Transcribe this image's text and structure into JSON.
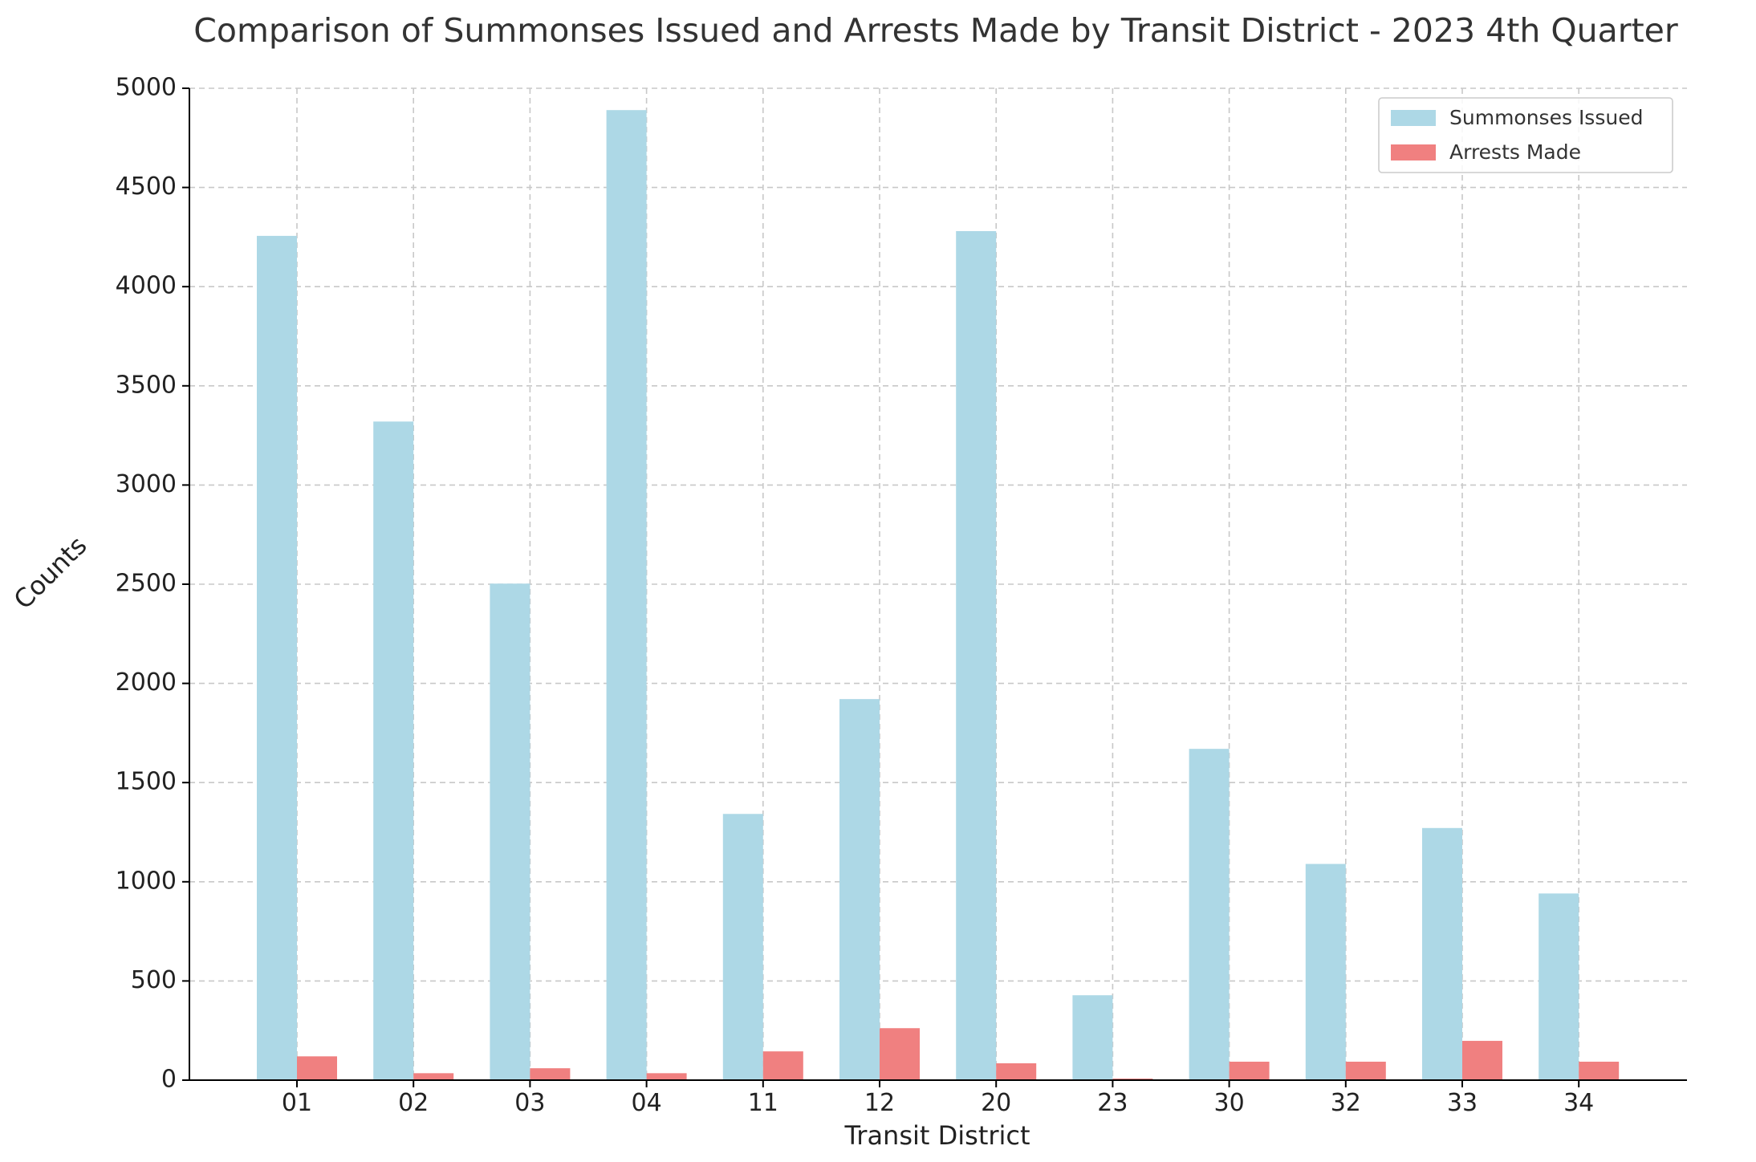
{
  "chart_data": {
    "type": "bar",
    "title": "Comparison of Summonses Issued and Arrests Made by Transit District - 2023 4th Quarter",
    "xlabel": "Transit District",
    "ylabel": "Counts",
    "categories": [
      "01",
      "02",
      "03",
      "04",
      "11",
      "12",
      "20",
      "23",
      "30",
      "32",
      "33",
      "34"
    ],
    "series": [
      {
        "name": "Summonses Issued",
        "color": "#add8e6",
        "values": [
          4256,
          3320,
          2503,
          4890,
          1342,
          1921,
          4280,
          428,
          1670,
          1090,
          1271,
          941
        ]
      },
      {
        "name": "Arrests Made",
        "color": "#f08080",
        "values": [
          120,
          35,
          60,
          35,
          145,
          262,
          85,
          8,
          93,
          93,
          198,
          93
        ]
      }
    ],
    "ylim": [
      0,
      5000
    ],
    "yticks": [
      0,
      500,
      1000,
      1500,
      2000,
      2500,
      3000,
      3500,
      4000,
      4500,
      5000
    ],
    "grid": true,
    "legend_position": "top-right"
  }
}
